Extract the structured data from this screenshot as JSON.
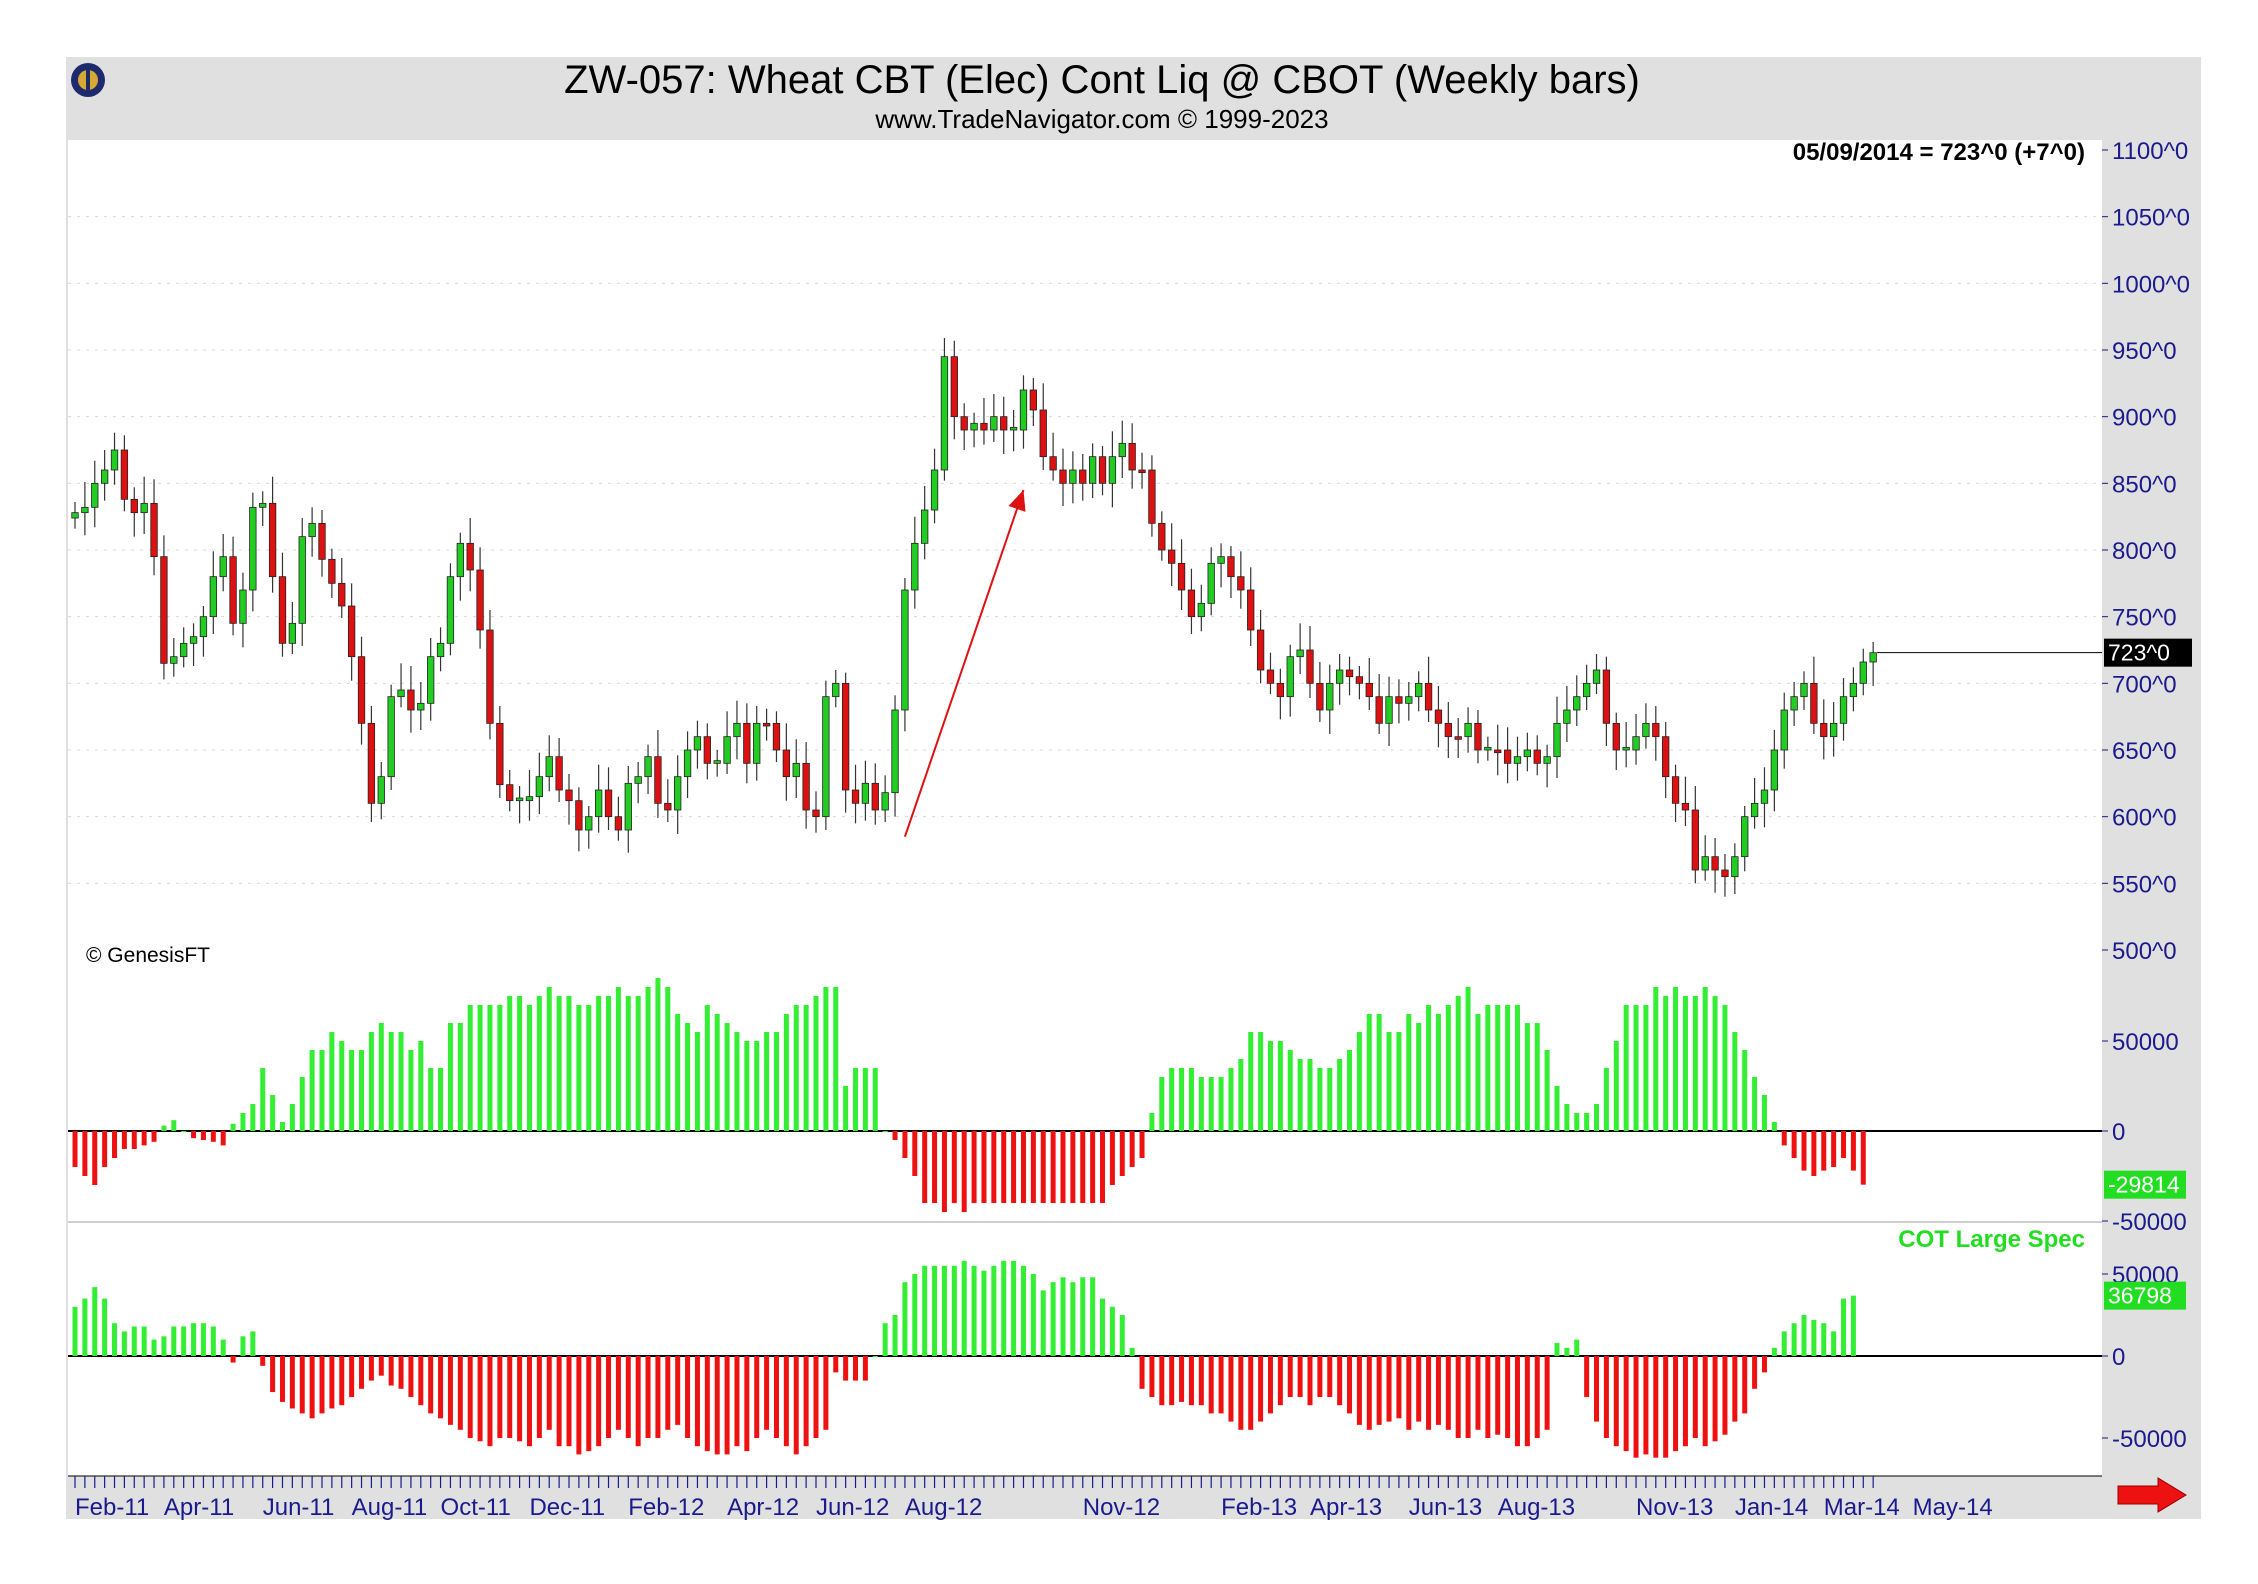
{
  "header": {
    "title": "ZW-057:  Wheat CBT (Elec) Cont Liq @ CBOT  (Weekly bars)",
    "subtitle": "www.TradeNavigator.com © 1999-2023"
  },
  "colors": {
    "up": "#22cc22",
    "down": "#dd1111",
    "frame": "#e0e0e0",
    "axis_text": "#1a1a8c",
    "arrow": "#dd1111"
  },
  "chart_data": [
    {
      "type": "candlestick",
      "info_label": "05/09/2014 = 723^0 (+7^0)",
      "last_value_label": "723^0",
      "last_value": 723,
      "copyright": "© GenesisFT",
      "ylim": [
        500,
        1100
      ],
      "yticks": [
        {
          "v": 1100,
          "label": "1100^0"
        },
        {
          "v": 1050,
          "label": "1050^0"
        },
        {
          "v": 1000,
          "label": "1000^0"
        },
        {
          "v": 950,
          "label": "950^0"
        },
        {
          "v": 900,
          "label": "900^0"
        },
        {
          "v": 850,
          "label": "850^0"
        },
        {
          "v": 800,
          "label": "800^0"
        },
        {
          "v": 750,
          "label": "750^0"
        },
        {
          "v": 700,
          "label": "700^0"
        },
        {
          "v": 650,
          "label": "650^0"
        },
        {
          "v": 600,
          "label": "600^0"
        },
        {
          "v": 550,
          "label": "550^0"
        },
        {
          "v": 500,
          "label": "500^0"
        }
      ],
      "grid": true,
      "annotation": {
        "type": "arrow",
        "from": {
          "week": 84,
          "price": 585
        },
        "to": {
          "week": 96,
          "price": 845
        }
      },
      "closes": [
        828,
        832,
        850,
        860,
        875,
        838,
        828,
        835,
        795,
        715,
        720,
        730,
        735,
        750,
        780,
        795,
        745,
        770,
        832,
        835,
        780,
        730,
        745,
        810,
        820,
        793,
        775,
        758,
        720,
        670,
        610,
        630,
        690,
        695,
        680,
        685,
        720,
        730,
        780,
        805,
        785,
        740,
        670,
        624,
        612,
        612,
        615,
        630,
        645,
        620,
        612,
        590,
        600,
        620,
        600,
        590,
        625,
        630,
        645,
        610,
        605,
        630,
        650,
        660,
        640,
        640,
        660,
        670,
        640,
        670,
        670,
        650,
        630,
        640,
        605,
        600,
        690,
        700,
        620,
        610,
        625,
        605,
        618,
        680,
        770,
        805,
        830,
        860,
        945,
        900,
        890,
        895,
        890,
        900,
        890,
        890,
        920,
        905,
        870,
        860,
        850,
        860,
        850,
        870,
        850,
        870,
        880,
        860,
        860,
        820,
        800,
        790,
        770,
        750,
        760,
        790,
        795,
        780,
        770,
        740,
        710,
        700,
        690,
        720,
        725,
        700,
        680,
        700,
        710,
        705,
        700,
        690,
        670,
        690,
        685,
        690,
        700,
        680,
        670,
        660,
        660,
        670,
        650,
        650,
        650,
        640,
        645,
        650,
        640,
        645,
        670,
        680,
        690,
        700,
        710,
        670,
        650,
        650,
        660,
        670,
        660,
        630,
        610,
        605,
        560,
        570,
        560,
        555,
        570,
        600,
        610,
        620,
        650,
        680,
        690,
        700,
        670,
        660,
        670,
        690,
        700,
        716,
        723
      ],
      "oi_panel": {
        "ylim": [
          -60000,
          95000
        ],
        "yticks": [
          {
            "v": 50000,
            "label": "50000"
          },
          {
            "v": 0,
            "label": "0"
          },
          {
            "v": -50000,
            "label": "-50000"
          }
        ],
        "last_value_label": "-29814",
        "values": [
          -20000,
          -25000,
          -30000,
          -20000,
          -15000,
          -10000,
          -10000,
          -8000,
          -6000,
          3000,
          6000,
          0,
          -4000,
          -5000,
          -6000,
          -8000,
          4000,
          10000,
          15000,
          35000,
          20000,
          5000,
          15000,
          30000,
          45000,
          45000,
          55000,
          50000,
          45000,
          45000,
          55000,
          60000,
          55000,
          55000,
          45000,
          50000,
          35000,
          35000,
          60000,
          60000,
          70000,
          70000,
          70000,
          70000,
          75000,
          75000,
          70000,
          75000,
          80000,
          75000,
          75000,
          70000,
          70000,
          75000,
          75000,
          80000,
          75000,
          75000,
          80000,
          85000,
          80000,
          65000,
          60000,
          55000,
          70000,
          65000,
          60000,
          55000,
          50000,
          50000,
          55000,
          55000,
          65000,
          70000,
          70000,
          75000,
          80000,
          80000,
          25000,
          35000,
          35000,
          35000,
          0,
          -5000,
          -15000,
          -25000,
          -40000,
          -40000,
          -45000,
          -40000,
          -45000,
          -40000,
          -40000,
          -40000,
          -40000,
          -40000,
          -40000,
          -40000,
          -40000,
          -40000,
          -40000,
          -40000,
          -40000,
          -40000,
          -40000,
          -30000,
          -25000,
          -20000,
          -15000,
          10000,
          30000,
          35000,
          35000,
          35000,
          30000,
          30000,
          30000,
          35000,
          40000,
          55000,
          55000,
          50000,
          50000,
          45000,
          40000,
          40000,
          35000,
          35000,
          40000,
          45000,
          55000,
          65000,
          65000,
          55000,
          55000,
          65000,
          60000,
          70000,
          65000,
          70000,
          75000,
          80000,
          65000,
          70000,
          70000,
          70000,
          70000,
          60000,
          60000,
          45000,
          25000,
          15000,
          10000,
          10000,
          15000,
          35000,
          50000,
          70000,
          70000,
          70000,
          80000,
          75000,
          80000,
          75000,
          75000,
          80000,
          75000,
          70000,
          55000,
          45000,
          30000,
          20000,
          5000,
          -8000,
          -15000,
          -22000,
          -25000,
          -22000,
          -20000,
          -15000,
          -22000,
          -29814
        ]
      },
      "cot_panel": {
        "label": "COT Large Spec",
        "ylim": [
          -65000,
          65000
        ],
        "yticks": [
          {
            "v": 50000,
            "label": "50000"
          },
          {
            "v": 0,
            "label": "0"
          },
          {
            "v": -50000,
            "label": "-50000"
          }
        ],
        "last_value_label": "36798",
        "values": [
          30000,
          35000,
          42000,
          35000,
          20000,
          15000,
          18000,
          18000,
          10000,
          12000,
          18000,
          18000,
          20000,
          20000,
          18000,
          10000,
          -4000,
          12000,
          15000,
          -6000,
          -22000,
          -28000,
          -32000,
          -35000,
          -38000,
          -35000,
          -32000,
          -30000,
          -25000,
          -20000,
          -15000,
          -12000,
          -18000,
          -20000,
          -25000,
          -30000,
          -35000,
          -38000,
          -42000,
          -45000,
          -50000,
          -52000,
          -55000,
          -50000,
          -50000,
          -52000,
          -55000,
          -50000,
          -45000,
          -55000,
          -55000,
          -60000,
          -58000,
          -55000,
          -50000,
          -45000,
          -50000,
          -55000,
          -50000,
          -50000,
          -45000,
          -42000,
          -50000,
          -55000,
          -58000,
          -60000,
          -60000,
          -55000,
          -58000,
          -50000,
          -45000,
          -50000,
          -55000,
          -60000,
          -55000,
          -50000,
          -45000,
          -10000,
          -15000,
          -15000,
          -15000,
          0,
          20000,
          25000,
          45000,
          50000,
          55000,
          55000,
          55000,
          55000,
          58000,
          55000,
          52000,
          55000,
          58000,
          58000,
          55000,
          50000,
          40000,
          45000,
          48000,
          45000,
          48000,
          48000,
          35000,
          30000,
          25000,
          5000,
          -20000,
          -25000,
          -30000,
          -30000,
          -28000,
          -30000,
          -30000,
          -35000,
          -35000,
          -40000,
          -45000,
          -45000,
          -40000,
          -35000,
          -30000,
          -25000,
          -25000,
          -30000,
          -25000,
          -25000,
          -30000,
          -35000,
          -42000,
          -45000,
          -42000,
          -40000,
          -38000,
          -45000,
          -40000,
          -45000,
          -42000,
          -45000,
          -50000,
          -50000,
          -45000,
          -50000,
          -48000,
          -50000,
          -55000,
          -55000,
          -50000,
          -45000,
          8000,
          5000,
          10000,
          -25000,
          -40000,
          -50000,
          -55000,
          -58000,
          -62000,
          -60000,
          -62000,
          -62000,
          -58000,
          -55000,
          -50000,
          -55000,
          -52000,
          -48000,
          -40000,
          -35000,
          -20000,
          -10000,
          5000,
          15000,
          20000,
          25000,
          22000,
          20000,
          15000,
          35000,
          36798
        ]
      },
      "x_labels": [
        {
          "week": 0,
          "label": "Feb-11"
        },
        {
          "week": 9,
          "label": "Apr-11"
        },
        {
          "week": 19,
          "label": "Jun-11"
        },
        {
          "week": 28,
          "label": "Aug-11"
        },
        {
          "week": 37,
          "label": "Oct-11"
        },
        {
          "week": 46,
          "label": "Dec-11"
        },
        {
          "week": 56,
          "label": "Feb-12"
        },
        {
          "week": 66,
          "label": "Apr-12"
        },
        {
          "week": 75,
          "label": "Jun-12"
        },
        {
          "week": 84,
          "label": "Aug-12"
        },
        {
          "week": 102,
          "label": "Nov-12"
        },
        {
          "week": 116,
          "label": "Feb-13"
        },
        {
          "week": 125,
          "label": "Apr-13"
        },
        {
          "week": 135,
          "label": "Jun-13"
        },
        {
          "week": 144,
          "label": "Aug-13"
        },
        {
          "week": 158,
          "label": "Nov-13"
        },
        {
          "week": 168,
          "label": "Jan-14"
        },
        {
          "week": 177,
          "label": "Mar-14"
        },
        {
          "week": 186,
          "label": "May-14"
        }
      ]
    }
  ]
}
